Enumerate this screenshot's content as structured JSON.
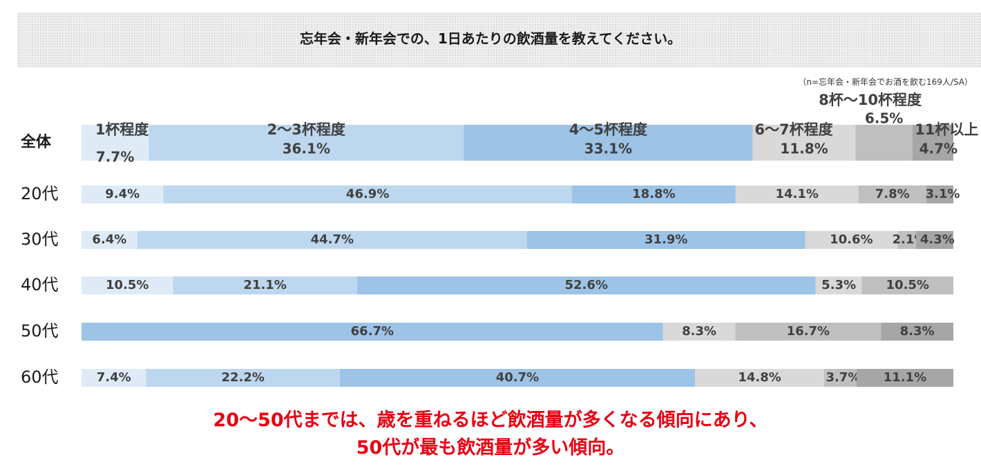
{
  "title": "忘年会・新年会での、1日あたりの飲酒量を教えてください。",
  "note": "（n=忘年会・新年会でお酒を飲む169人/SA）",
  "footer": {
    "line1": "20〜50代までは、歳を重ねるほど飲酒量が多くなる傾向にあり、",
    "line2": "50代が最も飲酒量が多い傾向。"
  },
  "colors": {
    "accent_text": "#e60012",
    "segments": [
      "#deebf7",
      "#bdd7ee",
      "#9dc3e6",
      "#d9d9d9",
      "#bfbfbf",
      "#a6a6a6"
    ]
  },
  "chart_data": {
    "type": "bar",
    "orientation": "horizontal",
    "stacked": true,
    "normalized_to": 100,
    "unit": "%",
    "categories": [
      "全体",
      "20代",
      "30代",
      "40代",
      "50代",
      "60代"
    ],
    "series": [
      {
        "name": "1杯程度",
        "values": [
          7.7,
          9.4,
          6.4,
          10.5,
          0,
          7.4
        ]
      },
      {
        "name": "2〜3杯程度",
        "values": [
          36.1,
          46.9,
          44.7,
          21.1,
          0,
          22.2
        ]
      },
      {
        "name": "4〜5杯程度",
        "values": [
          33.1,
          18.8,
          31.9,
          52.6,
          66.7,
          40.7
        ]
      },
      {
        "name": "6〜7杯程度",
        "values": [
          11.8,
          14.1,
          10.6,
          5.3,
          8.3,
          14.8
        ]
      },
      {
        "name": "8杯〜10杯程度",
        "values": [
          6.5,
          7.8,
          2.1,
          10.5,
          16.7,
          3.7
        ]
      },
      {
        "name": "11杯以上",
        "values": [
          4.7,
          3.1,
          4.3,
          0,
          8.3,
          11.1
        ]
      }
    ]
  }
}
